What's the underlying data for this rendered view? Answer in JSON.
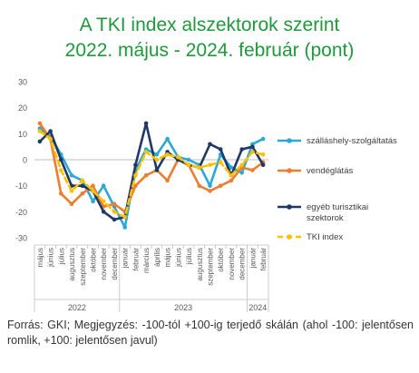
{
  "title_line1": "A TKI index alszektorok szerint",
  "title_line2": "2022. május - 2024. február (pont)",
  "footnote": "Forrás: GKI; Megjegyzés: -100-tól +100-ig terjedő skálán (ahol -100: jelentősen romlik, +100: jelentősen javul)",
  "colors": {
    "title": "#1e9a3c"
  },
  "chart_data": {
    "type": "line",
    "ylim": [
      -30,
      30
    ],
    "yticks": [
      -30,
      -20,
      -10,
      0,
      10,
      20,
      30
    ],
    "grid": false,
    "legend_position": "right",
    "months": [
      "május",
      "június",
      "július",
      "augusztus",
      "szeptember",
      "október",
      "november",
      "december",
      "január",
      "február",
      "március",
      "április",
      "május",
      "június",
      "július",
      "augusztus",
      "szeptember",
      "október",
      "november",
      "december",
      "január",
      "február"
    ],
    "years": [
      {
        "label": "2022",
        "start": 0,
        "end": 7
      },
      {
        "label": "2023",
        "start": 8,
        "end": 19
      },
      {
        "label": "2024",
        "start": 20,
        "end": 21
      }
    ],
    "series": [
      {
        "name": "szálláshely-szolgáltatás",
        "color": "#2aa8d8",
        "dashed": false,
        "values": [
          12,
          9,
          2,
          -6,
          -8,
          -16,
          -10,
          -18,
          -26,
          -4,
          4,
          2,
          8,
          1,
          0,
          -2,
          -10,
          2,
          -3,
          -5,
          6,
          8
        ]
      },
      {
        "name": "vendéglátás",
        "color": "#ed7d31",
        "dashed": false,
        "values": [
          14,
          8,
          -13,
          -17,
          -13,
          -10,
          -18,
          -17,
          -20,
          -10,
          -6,
          -4,
          -8,
          0,
          -2,
          -10,
          -12,
          -10,
          -8,
          -3,
          -4,
          -1
        ]
      },
      {
        "name": "egyéb turisztikai szektorok",
        "color": "#1f3864",
        "dashed": false,
        "values": [
          7,
          11,
          0,
          -10,
          -10,
          -12,
          -20,
          -23,
          -22,
          -2,
          14,
          -4,
          3,
          0,
          -2,
          -3,
          6,
          4,
          -6,
          4,
          5,
          -2
        ]
      },
      {
        "name": "TKI index",
        "color": "#ffc000",
        "dashed": true,
        "values": [
          11,
          8,
          -4,
          -12,
          -8,
          -12,
          -16,
          -20,
          -22,
          -6,
          3,
          0,
          2,
          1,
          -2,
          -3,
          -2,
          -1,
          -6,
          -2,
          3,
          2
        ]
      }
    ]
  }
}
